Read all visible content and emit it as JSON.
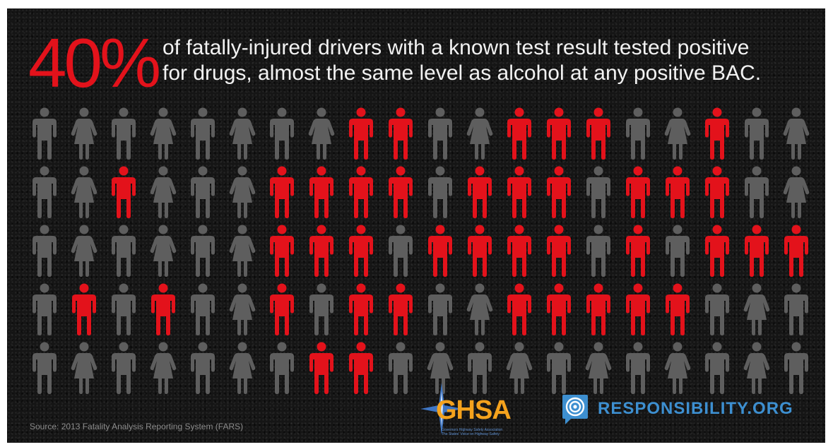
{
  "headline": {
    "percent": "40%",
    "line1": "of fatally-injured drivers with a known test result tested positive",
    "line2": "for drugs, almost the same level as alcohol at any positive BAC."
  },
  "pictogram": {
    "colors": {
      "highlight": "#e3121b",
      "base": "#5e5e5e"
    },
    "rows": [
      "MFMFMFMFRRMFRRRMFRMF",
      "MFRFMFRRRRMRRRMRRRMF",
      "MFMFMFRRRMRRRRMRMRRR",
      "MRMRMFRMRRMFRRRRRMFM",
      "MFMFMFMRRMFMFMFMFMFM"
    ]
  },
  "source": "Source: 2013 Fatality Analysis Reporting System (FARS)",
  "logos": {
    "ghsa": {
      "name": "GHSA",
      "tagline": "Governors Highway Safety Association",
      "tagline2": "The States' Voice on Highway Safety",
      "color": "#f4a21d"
    },
    "responsibility": {
      "name": "RESPONSIBILITY.ORG",
      "color": "#3d8fd0"
    }
  }
}
